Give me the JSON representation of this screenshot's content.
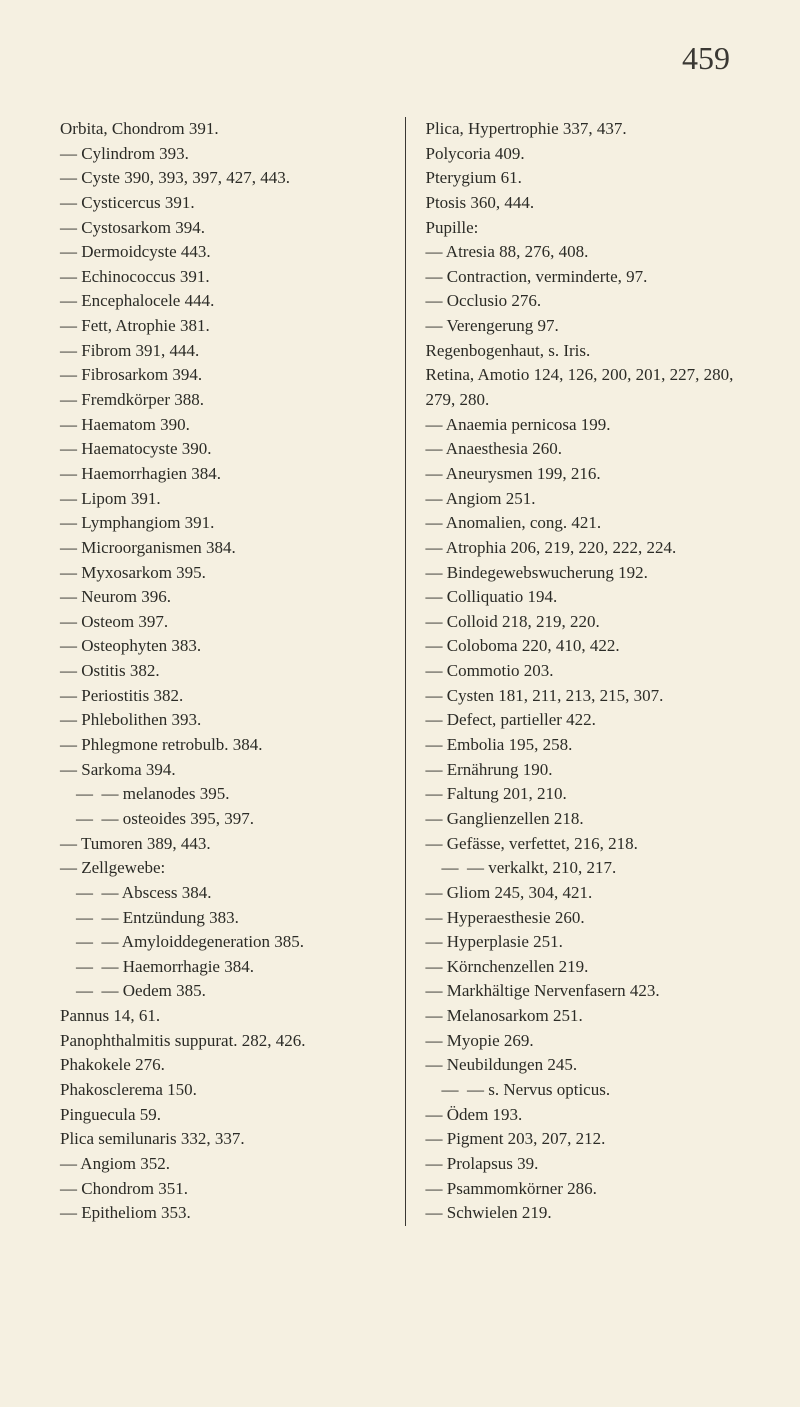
{
  "page_number": "459",
  "background_color": "#f5f0e1",
  "text_color": "#2b2b26",
  "font_family": "Times New Roman",
  "base_font_size": 17,
  "page_number_font_size": 32,
  "line_height": 1.45,
  "columns": {
    "left": [
      {
        "indent": 0,
        "text": "Orbita, Chondrom 391."
      },
      {
        "indent": 1,
        "text": "— Cylindrom 393."
      },
      {
        "indent": 1,
        "text": "— Cyste 390, 393, 397, 427, 443."
      },
      {
        "indent": 1,
        "text": "— Cysticercus 391."
      },
      {
        "indent": 1,
        "text": "— Cystosarkom 394."
      },
      {
        "indent": 1,
        "text": "— Dermoidcyste 443."
      },
      {
        "indent": 1,
        "text": "— Echinococcus 391."
      },
      {
        "indent": 1,
        "text": "— Encephalocele 444."
      },
      {
        "indent": 1,
        "text": "— Fett, Atrophie 381."
      },
      {
        "indent": 1,
        "text": "— Fibrom 391, 444."
      },
      {
        "indent": 1,
        "text": "— Fibrosarkom 394."
      },
      {
        "indent": 1,
        "text": "— Fremdkörper 388."
      },
      {
        "indent": 1,
        "text": "— Haematom 390."
      },
      {
        "indent": 1,
        "text": "— Haematocyste 390."
      },
      {
        "indent": 1,
        "text": "— Haemorrhagien 384."
      },
      {
        "indent": 1,
        "text": "— Lipom 391."
      },
      {
        "indent": 1,
        "text": "— Lymphangiom 391."
      },
      {
        "indent": 1,
        "text": "— Microorganismen 384."
      },
      {
        "indent": 1,
        "text": "— Myxosarkom 395."
      },
      {
        "indent": 1,
        "text": "— Neurom 396."
      },
      {
        "indent": 1,
        "text": "— Osteom 397."
      },
      {
        "indent": 1,
        "text": "— Osteophyten 383."
      },
      {
        "indent": 1,
        "text": "— Ostitis 382."
      },
      {
        "indent": 1,
        "text": "— Periostitis 382."
      },
      {
        "indent": 1,
        "text": "— Phlebolithen 393."
      },
      {
        "indent": 1,
        "text": "— Phlegmone retrobulb. 384."
      },
      {
        "indent": 1,
        "text": "— Sarkoma 394."
      },
      {
        "indent": 2,
        "text": "—  — melanodes 395."
      },
      {
        "indent": 2,
        "text": "—  — osteoides 395, 397."
      },
      {
        "indent": 1,
        "text": "— Tumoren 389, 443."
      },
      {
        "indent": 1,
        "text": "— Zellgewebe:"
      },
      {
        "indent": 2,
        "text": "—  — Abscess 384."
      },
      {
        "indent": 2,
        "text": "—  — Entzündung 383."
      },
      {
        "indent": 2,
        "text": "—  — Amyloiddegeneration 385."
      },
      {
        "indent": 2,
        "text": "—  — Haemorrhagie 384."
      },
      {
        "indent": 2,
        "text": "—  — Oedem 385."
      },
      {
        "indent": 0,
        "text": "Pannus 14, 61."
      },
      {
        "indent": 0,
        "text": "Panophthalmitis suppurat. 282, 426."
      },
      {
        "indent": 0,
        "text": "Phakokele 276."
      },
      {
        "indent": 0,
        "text": "Phakosclerema 150."
      },
      {
        "indent": 0,
        "text": "Pinguecula 59."
      },
      {
        "indent": 0,
        "text": "Plica semilunaris 332, 337."
      },
      {
        "indent": 1,
        "text": "— Angiom 352."
      },
      {
        "indent": 1,
        "text": "— Chondrom 351."
      },
      {
        "indent": 1,
        "text": "— Epitheliom 353."
      }
    ],
    "right": [
      {
        "indent": 0,
        "text": "Plica, Hypertrophie 337, 437."
      },
      {
        "indent": 0,
        "text": "Polycoria 409."
      },
      {
        "indent": 0,
        "text": "Pterygium 61."
      },
      {
        "indent": 0,
        "text": "Ptosis 360, 444."
      },
      {
        "indent": 0,
        "text": "Pupille:"
      },
      {
        "indent": 1,
        "text": "— Atresia 88, 276, 408."
      },
      {
        "indent": 1,
        "text": "— Contraction, verminderte, 97."
      },
      {
        "indent": 1,
        "text": "— Occlusio 276."
      },
      {
        "indent": 1,
        "text": "— Verengerung 97."
      },
      {
        "indent": 0,
        "text": "Regenbogenhaut, s. Iris."
      },
      {
        "indent": 0,
        "text": "Retina, Amotio 124, 126, 200, 201, 227, 280, 279, 280."
      },
      {
        "indent": 1,
        "text": "— Anaemia pernicosa 199."
      },
      {
        "indent": 1,
        "text": "— Anaesthesia 260."
      },
      {
        "indent": 1,
        "text": "— Aneurysmen 199, 216."
      },
      {
        "indent": 1,
        "text": "— Angiom 251."
      },
      {
        "indent": 1,
        "text": "— Anomalien, cong. 421."
      },
      {
        "indent": 1,
        "text": "— Atrophia 206, 219, 220, 222, 224."
      },
      {
        "indent": 1,
        "text": "— Bindegewebswucherung 192."
      },
      {
        "indent": 1,
        "text": "— Colliquatio 194."
      },
      {
        "indent": 1,
        "text": "— Colloid 218, 219, 220."
      },
      {
        "indent": 1,
        "text": "— Coloboma 220, 410, 422."
      },
      {
        "indent": 1,
        "text": "— Commotio 203."
      },
      {
        "indent": 1,
        "text": "— Cysten 181, 211, 213, 215, 307."
      },
      {
        "indent": 1,
        "text": "— Defect, partieller 422."
      },
      {
        "indent": 1,
        "text": "— Embolia 195, 258."
      },
      {
        "indent": 1,
        "text": "— Ernährung 190."
      },
      {
        "indent": 1,
        "text": "— Faltung 201, 210."
      },
      {
        "indent": 1,
        "text": "— Ganglienzellen 218."
      },
      {
        "indent": 1,
        "text": "— Gefässe, verfettet, 216, 218."
      },
      {
        "indent": 2,
        "text": "—  — verkalkt, 210, 217."
      },
      {
        "indent": 1,
        "text": "— Gliom 245, 304, 421."
      },
      {
        "indent": 1,
        "text": "— Hyperaesthesie 260."
      },
      {
        "indent": 1,
        "text": "— Hyperplasie 251."
      },
      {
        "indent": 1,
        "text": "— Körnchenzellen 219."
      },
      {
        "indent": 1,
        "text": "— Markhältige Nervenfasern 423."
      },
      {
        "indent": 1,
        "text": "— Melanosarkom 251."
      },
      {
        "indent": 1,
        "text": "— Myopie 269."
      },
      {
        "indent": 1,
        "text": "— Neubildungen 245."
      },
      {
        "indent": 2,
        "text": "—  — s. Nervus opticus."
      },
      {
        "indent": 1,
        "text": "— Ödem 193."
      },
      {
        "indent": 1,
        "text": "— Pigment 203, 207, 212."
      },
      {
        "indent": 1,
        "text": "— Prolapsus 39."
      },
      {
        "indent": 1,
        "text": "— Psammomkörner 286."
      },
      {
        "indent": 1,
        "text": "— Schwielen 219."
      }
    ]
  }
}
